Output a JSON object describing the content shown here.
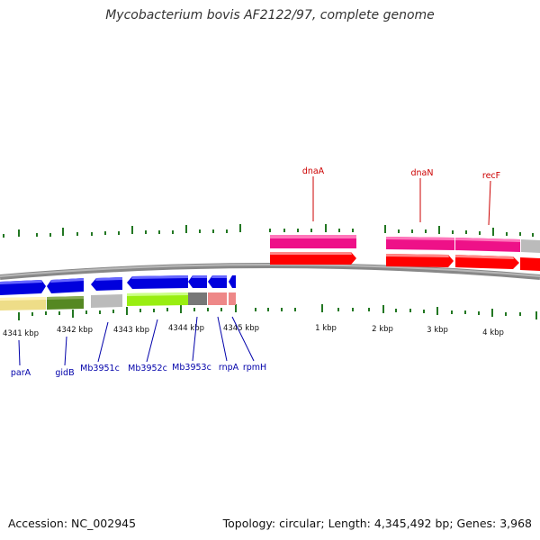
{
  "title": "Mycobacterium bovis AF2122/97, complete genome",
  "footer": {
    "accession": "Accession: NC_002945",
    "summary": "Topology: circular; Length: 4,345,492 bp; Genes: 3,968"
  },
  "ruler_labels": [
    "4341 kbp",
    "4342 kbp",
    "4343 kbp",
    "4344 kbp",
    "4345 kbp",
    "1 kbp",
    "2 kbp",
    "3 kbp",
    "4 kbp"
  ],
  "genes_forward": [
    {
      "name": "dnaA",
      "label_color": "#cc0000"
    },
    {
      "name": "dnaN",
      "label_color": "#cc0000"
    },
    {
      "name": "recF",
      "label_color": "#cc0000"
    }
  ],
  "genes_reverse": [
    {
      "name": "parA",
      "label_color": "#0000aa"
    },
    {
      "name": "gidB",
      "label_color": "#0000aa"
    },
    {
      "name": "Mb3951c",
      "label_color": "#0000aa"
    },
    {
      "name": "Mb3952c",
      "label_color": "#0000aa"
    },
    {
      "name": "Mb3953c",
      "label_color": "#0000aa"
    },
    {
      "name": "rnpA",
      "label_color": "#0000aa"
    },
    {
      "name": "rpmH",
      "label_color": "#0000aa"
    }
  ],
  "colors": {
    "forward_gene": "#ff0000",
    "reverse_gene": "#0000dd",
    "forward_category": "#ee1188",
    "tick": "#227722",
    "backbone": "#888888"
  }
}
